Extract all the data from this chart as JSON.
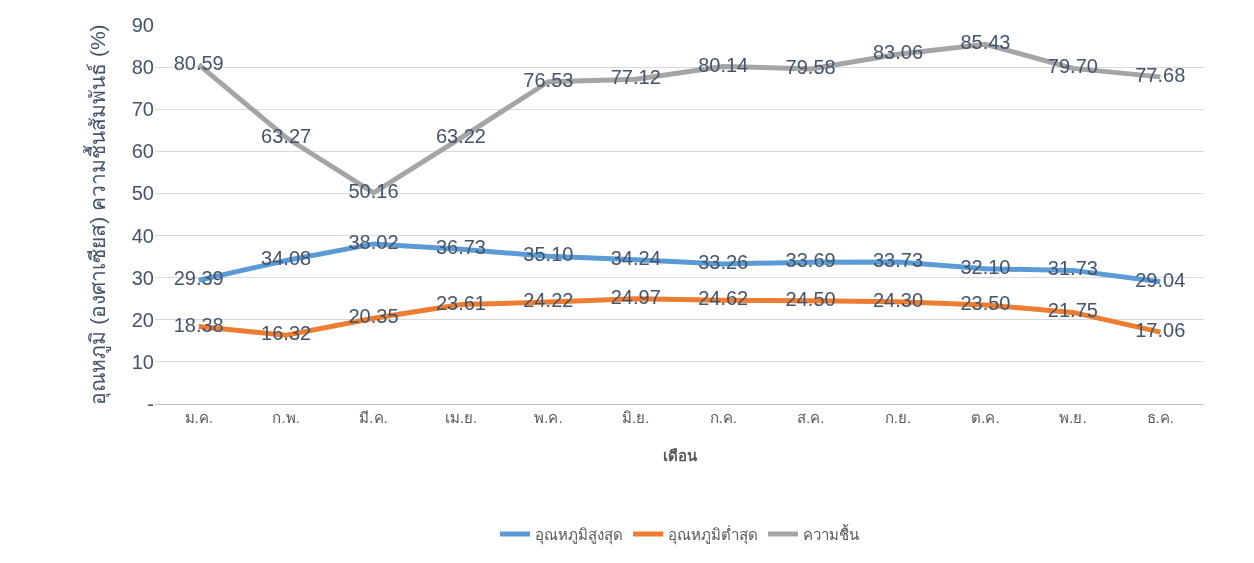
{
  "chart_data": {
    "type": "line",
    "xlabel": "เดือน",
    "ylabel": "อุณหภูมิ (องศาเซียส) ความชื้นสัมพันธ์ (%)",
    "categories": [
      "ม.ค.",
      "ก.พ.",
      "มี.ค.",
      "เม.ย.",
      "พ.ค.",
      "มิ.ย.",
      "ก.ค.",
      "ส.ค.",
      "ก.ย.",
      "ต.ค.",
      "พ.ย.",
      "ธ.ค."
    ],
    "series": [
      {
        "name": "อุณหภูมิสูงสุด",
        "color": "#5b9bd5",
        "values": [
          29.39,
          34.08,
          38.02,
          36.73,
          35.1,
          34.24,
          33.26,
          33.69,
          33.73,
          32.1,
          31.73,
          29.04
        ],
        "value_labels": [
          "29.39",
          "34.08",
          "38.02",
          "36.73",
          "35.10",
          "34.24",
          "33.26",
          "33.69",
          "33.73",
          "32.10",
          "31.73",
          "29.04"
        ]
      },
      {
        "name": "อุณหภูมิต่ำสุด",
        "color": "#ed7d31",
        "values": [
          18.38,
          16.32,
          20.35,
          23.61,
          24.22,
          24.97,
          24.62,
          24.5,
          24.3,
          23.5,
          21.75,
          17.06
        ],
        "value_labels": [
          "18.38",
          "16.32",
          "20.35",
          "23.61",
          "24.22",
          "24.97",
          "24.62",
          "24.50",
          "24.30",
          "23.50",
          "21.75",
          "17.06"
        ]
      },
      {
        "name": "ความชื้น",
        "color": "#a5a5a5",
        "values": [
          80.59,
          63.27,
          50.16,
          63.22,
          76.53,
          77.12,
          80.14,
          79.58,
          83.06,
          85.43,
          79.7,
          77.68
        ],
        "value_labels": [
          "80.59",
          "63.27",
          "50.16",
          "63.22",
          "76.53",
          "77.12",
          "80.14",
          "79.58",
          "83.06",
          "85.43",
          "79.70",
          "77.68"
        ]
      }
    ],
    "ylim": [
      0,
      90
    ],
    "yticks": [
      {
        "value": 0,
        "label": "-"
      },
      10,
      20,
      30,
      40,
      50,
      60,
      70,
      80,
      90
    ],
    "grid": "y",
    "legend": "bottom",
    "marker": "none",
    "line_style": "solid"
  }
}
